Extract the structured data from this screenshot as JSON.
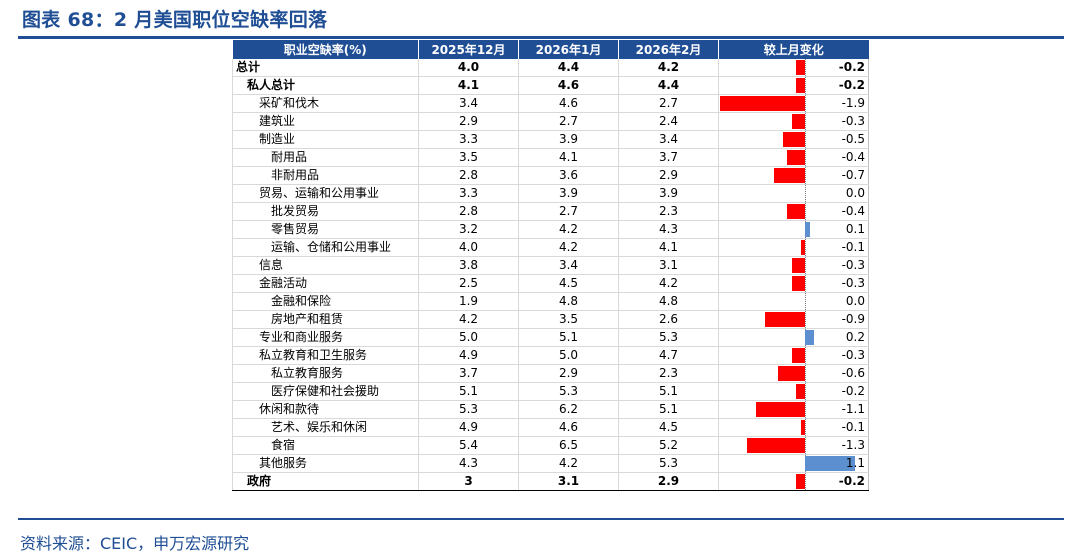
{
  "title": "图表 68：2 月美国职位空缺率回落",
  "source": "资料来源：CEIC，申万宏源研究",
  "colors": {
    "accent": "#1f4e94",
    "negative_bar": "#ff0000",
    "positive_bar": "#5b8fd0"
  },
  "table": {
    "headers": [
      "职业空缺率(%)",
      "2025年12月",
      "2026年1月",
      "2026年2月",
      "较上月变化"
    ],
    "rows": [
      {
        "label": "总计",
        "level": 0,
        "bold": true,
        "dec2025": "4.0",
        "jan2026": "4.4",
        "feb2026": "4.2",
        "change": -0.2,
        "change_text": "-0.2"
      },
      {
        "label": "私人总计",
        "level": 1,
        "bold": true,
        "dec2025": "4.1",
        "jan2026": "4.6",
        "feb2026": "4.4",
        "change": -0.2,
        "change_text": "-0.2"
      },
      {
        "label": "采矿和伐木",
        "level": 2,
        "bold": false,
        "dec2025": "3.4",
        "jan2026": "4.6",
        "feb2026": "2.7",
        "change": -1.9,
        "change_text": "-1.9"
      },
      {
        "label": "建筑业",
        "level": 2,
        "bold": false,
        "dec2025": "2.9",
        "jan2026": "2.7",
        "feb2026": "2.4",
        "change": -0.3,
        "change_text": "-0.3"
      },
      {
        "label": "制造业",
        "level": 2,
        "bold": false,
        "dec2025": "3.3",
        "jan2026": "3.9",
        "feb2026": "3.4",
        "change": -0.5,
        "change_text": "-0.5"
      },
      {
        "label": "耐用品",
        "level": 3,
        "bold": false,
        "dec2025": "3.5",
        "jan2026": "4.1",
        "feb2026": "3.7",
        "change": -0.4,
        "change_text": "-0.4"
      },
      {
        "label": "非耐用品",
        "level": 3,
        "bold": false,
        "dec2025": "2.8",
        "jan2026": "3.6",
        "feb2026": "2.9",
        "change": -0.7,
        "change_text": "-0.7"
      },
      {
        "label": "贸易、运输和公用事业",
        "level": 2,
        "bold": false,
        "dec2025": "3.3",
        "jan2026": "3.9",
        "feb2026": "3.9",
        "change": 0.0,
        "change_text": "0.0"
      },
      {
        "label": "批发贸易",
        "level": 3,
        "bold": false,
        "dec2025": "2.8",
        "jan2026": "2.7",
        "feb2026": "2.3",
        "change": -0.4,
        "change_text": "-0.4"
      },
      {
        "label": "零售贸易",
        "level": 3,
        "bold": false,
        "dec2025": "3.2",
        "jan2026": "4.2",
        "feb2026": "4.3",
        "change": 0.1,
        "change_text": "0.1"
      },
      {
        "label": "运输、仓储和公用事业",
        "level": 3,
        "bold": false,
        "dec2025": "4.0",
        "jan2026": "4.2",
        "feb2026": "4.1",
        "change": -0.1,
        "change_text": "-0.1"
      },
      {
        "label": "信息",
        "level": 2,
        "bold": false,
        "dec2025": "3.8",
        "jan2026": "3.4",
        "feb2026": "3.1",
        "change": -0.3,
        "change_text": "-0.3"
      },
      {
        "label": "金融活动",
        "level": 2,
        "bold": false,
        "dec2025": "2.5",
        "jan2026": "4.5",
        "feb2026": "4.2",
        "change": -0.3,
        "change_text": "-0.3"
      },
      {
        "label": "金融和保险",
        "level": 3,
        "bold": false,
        "dec2025": "1.9",
        "jan2026": "4.8",
        "feb2026": "4.8",
        "change": 0.0,
        "change_text": "0.0"
      },
      {
        "label": "房地产和租赁",
        "level": 3,
        "bold": false,
        "dec2025": "4.2",
        "jan2026": "3.5",
        "feb2026": "2.6",
        "change": -0.9,
        "change_text": "-0.9"
      },
      {
        "label": "专业和商业服务",
        "level": 2,
        "bold": false,
        "dec2025": "5.0",
        "jan2026": "5.1",
        "feb2026": "5.3",
        "change": 0.2,
        "change_text": "0.2"
      },
      {
        "label": "私立教育和卫生服务",
        "level": 2,
        "bold": false,
        "dec2025": "4.9",
        "jan2026": "5.0",
        "feb2026": "4.7",
        "change": -0.3,
        "change_text": "-0.3"
      },
      {
        "label": "私立教育服务",
        "level": 3,
        "bold": false,
        "dec2025": "3.7",
        "jan2026": "2.9",
        "feb2026": "2.3",
        "change": -0.6,
        "change_text": "-0.6"
      },
      {
        "label": "医疗保健和社会援助",
        "level": 3,
        "bold": false,
        "dec2025": "5.1",
        "jan2026": "5.3",
        "feb2026": "5.1",
        "change": -0.2,
        "change_text": "-0.2"
      },
      {
        "label": "休闲和款待",
        "level": 2,
        "bold": false,
        "dec2025": "5.3",
        "jan2026": "6.2",
        "feb2026": "5.1",
        "change": -1.1,
        "change_text": "-1.1"
      },
      {
        "label": "艺术、娱乐和休闲",
        "level": 3,
        "bold": false,
        "dec2025": "4.9",
        "jan2026": "4.6",
        "feb2026": "4.5",
        "change": -0.1,
        "change_text": "-0.1"
      },
      {
        "label": "食宿",
        "level": 3,
        "bold": false,
        "dec2025": "5.4",
        "jan2026": "6.5",
        "feb2026": "5.2",
        "change": -1.3,
        "change_text": "-1.3"
      },
      {
        "label": "其他服务",
        "level": 2,
        "bold": false,
        "dec2025": "4.3",
        "jan2026": "4.2",
        "feb2026": "5.3",
        "change": 1.1,
        "change_text": "1.1"
      },
      {
        "label": "政府",
        "level": 1,
        "bold": true,
        "dec2025": "3",
        "jan2026": "3.1",
        "feb2026": "2.9",
        "change": -0.2,
        "change_text": "-0.2"
      }
    ]
  }
}
